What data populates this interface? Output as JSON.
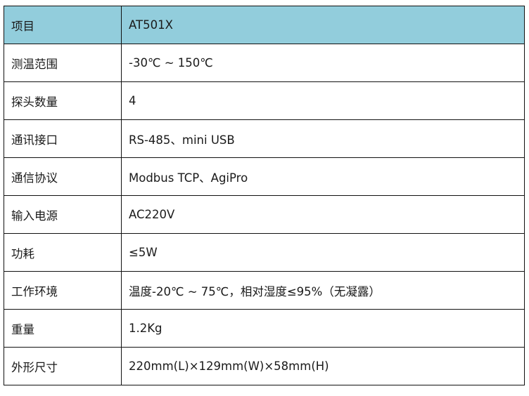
{
  "header_color": "#92cddc",
  "header": {
    "label": "项目",
    "value": "AT501X"
  },
  "rows": [
    {
      "label": "测温范围",
      "value": "-30℃ ~ 150℃"
    },
    {
      "label": "探头数量",
      "value": "4"
    },
    {
      "label": "通讯接口",
      "value": "RS-485、mini USB"
    },
    {
      "label": "通信协议",
      "value": "Modbus TCP、AgiPro"
    },
    {
      "label": "输入电源",
      "value": "AC220V"
    },
    {
      "label": "功耗",
      "value": "≤5W"
    },
    {
      "label": "工作环境",
      "value": "温度-20℃ ~ 75℃，相对湿度≤95%（无凝露）"
    },
    {
      "label": "重量",
      "value": "1.2Kg"
    },
    {
      "label": "外形尺寸",
      "value": "220mm(L)×129mm(W)×58mm(H)"
    }
  ]
}
